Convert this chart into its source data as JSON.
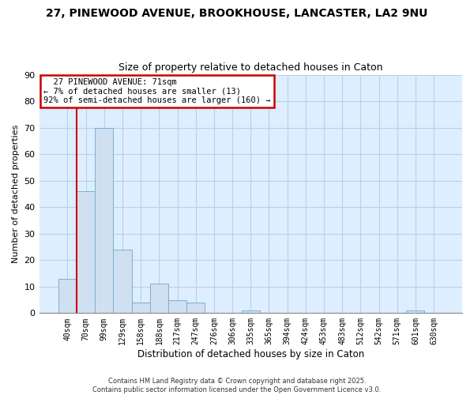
{
  "title": "27, PINEWOOD AVENUE, BROOKHOUSE, LANCASTER, LA2 9NU",
  "subtitle": "Size of property relative to detached houses in Caton",
  "xlabel": "Distribution of detached houses by size in Caton",
  "ylabel": "Number of detached properties",
  "categories": [
    "40sqm",
    "70sqm",
    "99sqm",
    "129sqm",
    "158sqm",
    "188sqm",
    "217sqm",
    "247sqm",
    "276sqm",
    "306sqm",
    "335sqm",
    "365sqm",
    "394sqm",
    "424sqm",
    "453sqm",
    "483sqm",
    "512sqm",
    "542sqm",
    "571sqm",
    "601sqm",
    "630sqm"
  ],
  "values": [
    13,
    46,
    70,
    24,
    4,
    11,
    5,
    4,
    0,
    0,
    1,
    0,
    0,
    0,
    0,
    0,
    0,
    0,
    0,
    1,
    0
  ],
  "bar_color": "#cfe0f0",
  "bar_edge_color": "#7bafd4",
  "plot_bg_color": "#ddeeff",
  "vline_color": "#cc0000",
  "ylim": [
    0,
    90
  ],
  "yticks": [
    0,
    10,
    20,
    30,
    40,
    50,
    60,
    70,
    80,
    90
  ],
  "annotation_title": "27 PINEWOOD AVENUE: 71sqm",
  "annotation_line1": "← 7% of detached houses are smaller (13)",
  "annotation_line2": "92% of semi-detached houses are larger (160) →",
  "annotation_box_color": "#ffffff",
  "annotation_border_color": "#cc0000",
  "footer_line1": "Contains HM Land Registry data © Crown copyright and database right 2025.",
  "footer_line2": "Contains public sector information licensed under the Open Government Licence v3.0.",
  "background_color": "#ffffff",
  "grid_color": "#b8d0e8"
}
